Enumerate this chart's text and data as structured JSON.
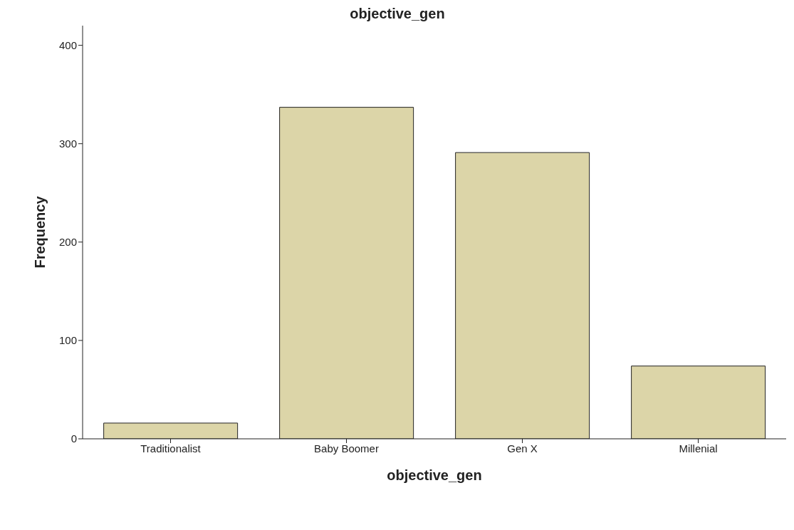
{
  "chart_data": {
    "type": "bar",
    "title": "objective_gen",
    "xlabel": "objective_gen",
    "ylabel": "Frequency",
    "categories": [
      "Traditionalist",
      "Baby Boomer",
      "Gen X",
      "Millenial"
    ],
    "values": [
      16,
      337,
      291,
      74
    ],
    "color": "#dcd5a8",
    "ylim": [
      0,
      420
    ],
    "yticks": [
      0,
      100,
      200,
      300,
      400
    ],
    "grid": false,
    "legend": false
  }
}
